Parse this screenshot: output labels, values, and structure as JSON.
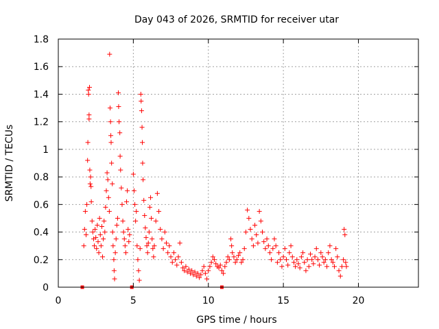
{
  "chart_data": {
    "type": "scatter",
    "title": "Day 043 of 2026, SRMTID for receiver utar",
    "xlabel": "GPS time / hours",
    "ylabel": "SRMTID / TECUs",
    "xlim": [
      0,
      24
    ],
    "ylim": [
      0,
      1.8
    ],
    "x_ticks": [
      0,
      5,
      10,
      15,
      20
    ],
    "x_tick_labels": [
      "0",
      "5",
      "10",
      "15",
      "20"
    ],
    "y_ticks": [
      0,
      0.2,
      0.4,
      0.6,
      0.8,
      1.0,
      1.2,
      1.4,
      1.6,
      1.8
    ],
    "y_tick_labels": [
      "0",
      "0.2",
      "0.4",
      "0.6",
      "0.8",
      "1",
      "1.2",
      "1.4",
      "1.6",
      "1.8"
    ],
    "grid": true,
    "marker_color": "#ff0000",
    "marker": "plus",
    "gap_markers_x": [
      1.6,
      4.9,
      10.9
    ],
    "series": [
      {
        "name": "SRMTID",
        "points": [
          [
            1.7,
            0.3
          ],
          [
            1.75,
            0.42
          ],
          [
            1.8,
            0.55
          ],
          [
            1.85,
            0.38
          ],
          [
            1.9,
            0.6
          ],
          [
            1.95,
            0.92
          ],
          [
            1.97,
            1.05
          ],
          [
            2.0,
            1.43
          ],
          [
            2.02,
            1.4
          ],
          [
            2.05,
            1.25
          ],
          [
            2.05,
            1.22
          ],
          [
            2.08,
            1.45
          ],
          [
            2.1,
            0.85
          ],
          [
            2.12,
            0.75
          ],
          [
            2.15,
            0.8
          ],
          [
            2.18,
            0.73
          ],
          [
            2.2,
            0.62
          ],
          [
            2.25,
            0.48
          ],
          [
            2.3,
            0.4
          ],
          [
            2.35,
            0.35
          ],
          [
            2.4,
            0.3
          ],
          [
            2.45,
            0.42
          ],
          [
            2.5,
            0.36
          ],
          [
            2.55,
            0.28
          ],
          [
            2.6,
            0.45
          ],
          [
            2.65,
            0.33
          ],
          [
            2.7,
            0.25
          ],
          [
            2.75,
            0.5
          ],
          [
            2.8,
            0.38
          ],
          [
            2.85,
            0.3
          ],
          [
            2.9,
            0.44
          ],
          [
            2.95,
            0.22
          ],
          [
            3.0,
            0.35
          ],
          [
            3.05,
            0.48
          ],
          [
            3.1,
            0.4
          ],
          [
            3.15,
            0.58
          ],
          [
            3.2,
            0.7
          ],
          [
            3.25,
            0.83
          ],
          [
            3.3,
            0.78
          ],
          [
            3.35,
            0.65
          ],
          [
            3.4,
            0.55
          ],
          [
            3.42,
            1.69
          ],
          [
            3.45,
            1.3
          ],
          [
            3.48,
            1.2
          ],
          [
            3.5,
            1.1
          ],
          [
            3.52,
            1.05
          ],
          [
            3.55,
            0.9
          ],
          [
            3.6,
            0.75
          ],
          [
            3.62,
            0.4
          ],
          [
            3.65,
            0.3
          ],
          [
            3.7,
            0.2
          ],
          [
            3.72,
            0.12
          ],
          [
            3.75,
            0.06
          ],
          [
            3.8,
            0.25
          ],
          [
            3.85,
            0.35
          ],
          [
            3.9,
            0.45
          ],
          [
            3.95,
            0.5
          ],
          [
            4.0,
            1.41
          ],
          [
            4.02,
            1.31
          ],
          [
            4.05,
            1.2
          ],
          [
            4.1,
            1.12
          ],
          [
            4.12,
            0.95
          ],
          [
            4.15,
            0.85
          ],
          [
            4.2,
            0.72
          ],
          [
            4.25,
            0.6
          ],
          [
            4.3,
            0.48
          ],
          [
            4.35,
            0.4
          ],
          [
            4.4,
            0.35
          ],
          [
            4.45,
            0.3
          ],
          [
            4.5,
            0.25
          ],
          [
            4.55,
            0.62
          ],
          [
            4.6,
            0.7
          ],
          [
            4.65,
            0.42
          ],
          [
            4.7,
            0.33
          ],
          [
            4.75,
            0.38
          ],
          [
            5.0,
            0.82
          ],
          [
            5.05,
            0.7
          ],
          [
            5.1,
            0.6
          ],
          [
            5.15,
            0.48
          ],
          [
            5.2,
            0.55
          ],
          [
            5.25,
            0.3
          ],
          [
            5.3,
            0.2
          ],
          [
            5.35,
            0.12
          ],
          [
            5.4,
            0.05
          ],
          [
            5.45,
            0.28
          ],
          [
            5.5,
            1.4
          ],
          [
            5.52,
            1.35
          ],
          [
            5.55,
            1.28
          ],
          [
            5.58,
            1.16
          ],
          [
            5.6,
            1.05
          ],
          [
            5.62,
            0.9
          ],
          [
            5.65,
            0.78
          ],
          [
            5.7,
            0.63
          ],
          [
            5.75,
            0.52
          ],
          [
            5.8,
            0.43
          ],
          [
            5.85,
            0.36
          ],
          [
            5.9,
            0.3
          ],
          [
            5.95,
            0.25
          ],
          [
            6.0,
            0.32
          ],
          [
            6.05,
            0.4
          ],
          [
            6.1,
            0.58
          ],
          [
            6.15,
            0.65
          ],
          [
            6.2,
            0.5
          ],
          [
            6.25,
            0.35
          ],
          [
            6.3,
            0.28
          ],
          [
            6.35,
            0.22
          ],
          [
            6.4,
            0.3
          ],
          [
            6.5,
            0.48
          ],
          [
            6.6,
            0.68
          ],
          [
            6.7,
            0.55
          ],
          [
            6.8,
            0.42
          ],
          [
            6.9,
            0.35
          ],
          [
            7.0,
            0.28
          ],
          [
            7.1,
            0.4
          ],
          [
            7.2,
            0.32
          ],
          [
            7.3,
            0.25
          ],
          [
            7.4,
            0.3
          ],
          [
            7.5,
            0.22
          ],
          [
            7.6,
            0.18
          ],
          [
            7.7,
            0.25
          ],
          [
            7.8,
            0.2
          ],
          [
            7.9,
            0.16
          ],
          [
            8.0,
            0.22
          ],
          [
            8.1,
            0.32
          ],
          [
            8.2,
            0.18
          ],
          [
            8.3,
            0.14
          ],
          [
            8.4,
            0.12
          ],
          [
            8.5,
            0.15
          ],
          [
            8.6,
            0.11
          ],
          [
            8.7,
            0.13
          ],
          [
            8.8,
            0.1
          ],
          [
            8.9,
            0.12
          ],
          [
            9.0,
            0.09
          ],
          [
            9.1,
            0.11
          ],
          [
            9.2,
            0.08
          ],
          [
            9.3,
            0.1
          ],
          [
            9.4,
            0.07
          ],
          [
            9.5,
            0.09
          ],
          [
            9.6,
            0.12
          ],
          [
            9.7,
            0.15
          ],
          [
            9.8,
            0.1
          ],
          [
            9.9,
            0.06
          ],
          [
            10.0,
            0.12
          ],
          [
            10.1,
            0.15
          ],
          [
            10.2,
            0.18
          ],
          [
            10.3,
            0.22
          ],
          [
            10.4,
            0.2
          ],
          [
            10.5,
            0.17
          ],
          [
            10.6,
            0.15
          ],
          [
            10.7,
            0.14
          ],
          [
            10.8,
            0.16
          ],
          [
            10.9,
            0.12
          ],
          [
            11.0,
            0.1
          ],
          [
            11.1,
            0.15
          ],
          [
            11.2,
            0.18
          ],
          [
            11.3,
            0.22
          ],
          [
            11.4,
            0.2
          ],
          [
            11.5,
            0.35
          ],
          [
            11.55,
            0.3
          ],
          [
            11.6,
            0.25
          ],
          [
            11.7,
            0.22
          ],
          [
            11.8,
            0.18
          ],
          [
            11.9,
            0.2
          ],
          [
            12.0,
            0.23
          ],
          [
            12.1,
            0.25
          ],
          [
            12.2,
            0.18
          ],
          [
            12.3,
            0.2
          ],
          [
            12.4,
            0.28
          ],
          [
            12.5,
            0.4
          ],
          [
            12.6,
            0.56
          ],
          [
            12.7,
            0.5
          ],
          [
            12.8,
            0.42
          ],
          [
            12.9,
            0.35
          ],
          [
            13.0,
            0.3
          ],
          [
            13.1,
            0.45
          ],
          [
            13.2,
            0.38
          ],
          [
            13.3,
            0.32
          ],
          [
            13.4,
            0.55
          ],
          [
            13.5,
            0.48
          ],
          [
            13.6,
            0.4
          ],
          [
            13.7,
            0.33
          ],
          [
            13.8,
            0.28
          ],
          [
            13.9,
            0.35
          ],
          [
            14.0,
            0.3
          ],
          [
            14.1,
            0.25
          ],
          [
            14.2,
            0.2
          ],
          [
            14.3,
            0.28
          ],
          [
            14.4,
            0.35
          ],
          [
            14.5,
            0.3
          ],
          [
            14.6,
            0.18
          ],
          [
            14.7,
            0.25
          ],
          [
            14.8,
            0.2
          ],
          [
            14.9,
            0.15
          ],
          [
            15.0,
            0.22
          ],
          [
            15.1,
            0.28
          ],
          [
            15.2,
            0.2
          ],
          [
            15.3,
            0.16
          ],
          [
            15.4,
            0.25
          ],
          [
            15.5,
            0.3
          ],
          [
            15.6,
            0.22
          ],
          [
            15.7,
            0.18
          ],
          [
            15.8,
            0.15
          ],
          [
            15.9,
            0.2
          ],
          [
            16.0,
            0.17
          ],
          [
            16.1,
            0.14
          ],
          [
            16.2,
            0.22
          ],
          [
            16.3,
            0.25
          ],
          [
            16.4,
            0.18
          ],
          [
            16.5,
            0.12
          ],
          [
            16.6,
            0.2
          ],
          [
            16.7,
            0.15
          ],
          [
            16.8,
            0.24
          ],
          [
            16.9,
            0.2
          ],
          [
            17.0,
            0.17
          ],
          [
            17.1,
            0.22
          ],
          [
            17.2,
            0.28
          ],
          [
            17.3,
            0.2
          ],
          [
            17.4,
            0.16
          ],
          [
            17.5,
            0.25
          ],
          [
            17.6,
            0.22
          ],
          [
            17.7,
            0.18
          ],
          [
            17.8,
            0.2
          ],
          [
            17.9,
            0.15
          ],
          [
            18.0,
            0.25
          ],
          [
            18.1,
            0.3
          ],
          [
            18.2,
            0.2
          ],
          [
            18.3,
            0.18
          ],
          [
            18.4,
            0.15
          ],
          [
            18.5,
            0.28
          ],
          [
            18.6,
            0.22
          ],
          [
            18.7,
            0.12
          ],
          [
            18.8,
            0.08
          ],
          [
            18.9,
            0.15
          ],
          [
            19.0,
            0.2
          ],
          [
            19.05,
            0.42
          ],
          [
            19.1,
            0.38
          ],
          [
            19.15,
            0.18
          ],
          [
            19.2,
            0.15
          ]
        ]
      }
    ]
  }
}
